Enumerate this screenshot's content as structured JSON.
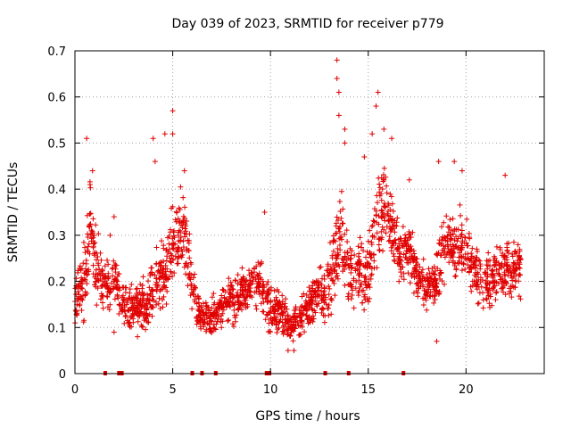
{
  "chart_data": {
    "type": "scatter",
    "title": "Day 039 of 2023, SRMTID for receiver p779",
    "xlabel": "GPS time / hours",
    "ylabel": "SRMTID / TECUs",
    "xlim": [
      0,
      24
    ],
    "ylim": [
      0,
      0.7
    ],
    "xticks": [
      0,
      5,
      10,
      15,
      20
    ],
    "xtick_labels": [
      "0",
      "5",
      "10",
      "15",
      "20"
    ],
    "yticks": [
      0,
      0.1,
      0.2,
      0.3,
      0.4,
      0.5,
      0.6,
      0.7
    ],
    "ytick_labels": [
      "0",
      "0.1",
      "0.2",
      "0.3",
      "0.4",
      "0.5",
      "0.6",
      "0.7"
    ],
    "grid": true,
    "marker": "+",
    "marker_color": "#e00000",
    "series": [
      {
        "name": "SRMTID",
        "trend": [
          [
            0.0,
            0.14
          ],
          [
            0.3,
            0.19
          ],
          [
            0.6,
            0.22
          ],
          [
            0.8,
            0.35
          ],
          [
            1.0,
            0.24
          ],
          [
            1.3,
            0.2
          ],
          [
            1.6,
            0.19
          ],
          [
            2.0,
            0.21
          ],
          [
            2.3,
            0.17
          ],
          [
            2.7,
            0.14
          ],
          [
            3.0,
            0.14
          ],
          [
            3.5,
            0.15
          ],
          [
            4.0,
            0.17
          ],
          [
            4.3,
            0.22
          ],
          [
            4.6,
            0.2
          ],
          [
            4.9,
            0.28
          ],
          [
            5.2,
            0.3
          ],
          [
            5.6,
            0.32
          ],
          [
            6.0,
            0.18
          ],
          [
            6.5,
            0.12
          ],
          [
            7.0,
            0.12
          ],
          [
            7.5,
            0.15
          ],
          [
            8.0,
            0.16
          ],
          [
            8.5,
            0.17
          ],
          [
            9.0,
            0.19
          ],
          [
            9.5,
            0.2
          ],
          [
            10.0,
            0.13
          ],
          [
            10.5,
            0.14
          ],
          [
            11.0,
            0.1
          ],
          [
            11.5,
            0.12
          ],
          [
            12.0,
            0.15
          ],
          [
            12.5,
            0.18
          ],
          [
            13.0,
            0.18
          ],
          [
            13.3,
            0.24
          ],
          [
            13.6,
            0.33
          ],
          [
            14.0,
            0.21
          ],
          [
            14.5,
            0.23
          ],
          [
            15.0,
            0.2
          ],
          [
            15.4,
            0.33
          ],
          [
            15.8,
            0.37
          ],
          [
            16.2,
            0.32
          ],
          [
            16.6,
            0.25
          ],
          [
            17.0,
            0.27
          ],
          [
            17.5,
            0.22
          ],
          [
            18.0,
            0.19
          ],
          [
            18.5,
            0.2
          ],
          [
            19.0,
            0.3
          ],
          [
            19.5,
            0.27
          ],
          [
            20.0,
            0.28
          ],
          [
            20.5,
            0.21
          ],
          [
            21.0,
            0.2
          ],
          [
            21.5,
            0.21
          ],
          [
            22.0,
            0.23
          ],
          [
            22.5,
            0.22
          ],
          [
            22.8,
            0.22
          ]
        ],
        "spread": [
          [
            0.0,
            0.04
          ],
          [
            0.8,
            0.09
          ],
          [
            1.5,
            0.05
          ],
          [
            2.5,
            0.04
          ],
          [
            4.0,
            0.05
          ],
          [
            5.0,
            0.08
          ],
          [
            5.8,
            0.07
          ],
          [
            6.5,
            0.03
          ],
          [
            8.0,
            0.04
          ],
          [
            9.5,
            0.05
          ],
          [
            11.0,
            0.03
          ],
          [
            12.5,
            0.04
          ],
          [
            13.5,
            0.1
          ],
          [
            14.5,
            0.05
          ],
          [
            15.5,
            0.09
          ],
          [
            16.5,
            0.06
          ],
          [
            18.0,
            0.05
          ],
          [
            19.0,
            0.07
          ],
          [
            20.0,
            0.06
          ],
          [
            21.5,
            0.05
          ],
          [
            22.8,
            0.05
          ]
        ],
        "peaks": [
          [
            0.6,
            0.51
          ],
          [
            0.9,
            0.44
          ],
          [
            4.0,
            0.51
          ],
          [
            4.1,
            0.46
          ],
          [
            4.6,
            0.52
          ],
          [
            5.0,
            0.57
          ],
          [
            5.0,
            0.52
          ],
          [
            5.6,
            0.44
          ],
          [
            9.7,
            0.35
          ],
          [
            13.4,
            0.68
          ],
          [
            13.4,
            0.64
          ],
          [
            13.5,
            0.61
          ],
          [
            13.5,
            0.56
          ],
          [
            13.8,
            0.53
          ],
          [
            13.8,
            0.5
          ],
          [
            15.2,
            0.52
          ],
          [
            15.4,
            0.58
          ],
          [
            15.5,
            0.61
          ],
          [
            15.8,
            0.53
          ],
          [
            16.2,
            0.51
          ],
          [
            14.8,
            0.47
          ],
          [
            18.6,
            0.46
          ],
          [
            19.4,
            0.46
          ],
          [
            19.8,
            0.44
          ],
          [
            22.0,
            0.43
          ],
          [
            17.1,
            0.42
          ],
          [
            2.0,
            0.34
          ],
          [
            1.8,
            0.3
          ],
          [
            10.9,
            0.05
          ],
          [
            11.2,
            0.05
          ],
          [
            18.5,
            0.07
          ],
          [
            3.2,
            0.08
          ],
          [
            2.0,
            0.09
          ]
        ],
        "zero_markers": [
          1.55,
          2.25,
          2.4,
          6.0,
          6.5,
          7.2,
          9.8,
          9.95,
          12.8,
          14.0,
          16.8
        ]
      }
    ]
  }
}
